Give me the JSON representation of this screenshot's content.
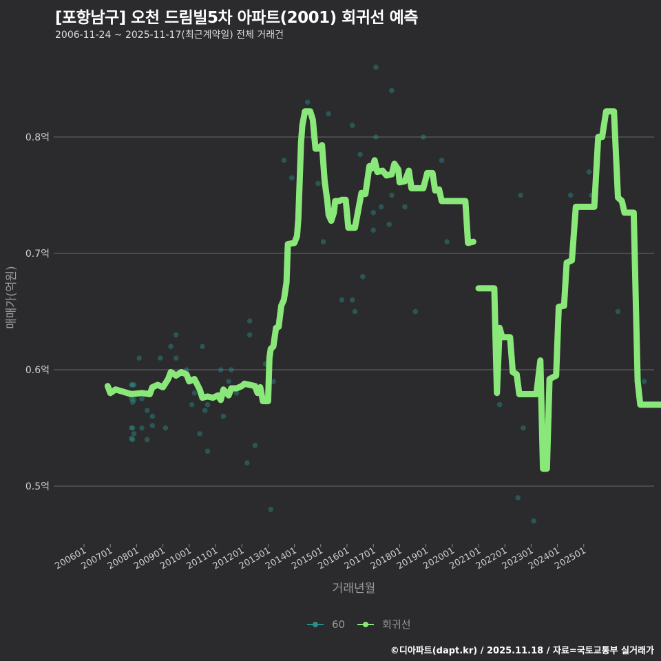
{
  "header": {
    "title": "[포항남구] 오천 드림빌5차 아파트(2001) 회귀선 예측",
    "subtitle": "2006-11-24 ~ 2025-11-17(최근계약일) 전체 거래건"
  },
  "legend": {
    "items": [
      {
        "label": "60",
        "color": "#2a8f8a"
      },
      {
        "label": "회귀선",
        "color": "#8ae87a"
      }
    ]
  },
  "footer": "©디아파트(dapt.kr) / 2025.11.18 / 자료=국토교통부 실거래가",
  "chart_data": {
    "type": "line",
    "title": "[포항남구] 오천 드림빌5차 아파트(2001) 회귀선 예측",
    "subtitle": "2006-11-24 ~ 2025-11-17(최근계약일) 전체 거래건",
    "xlabel": "거래년월",
    "ylabel": "매매가(억원)",
    "ylim": [
      0.45,
      0.87
    ],
    "grid": true,
    "legend_position": "bottom",
    "x_ticks": [
      "200601",
      "200701",
      "200801",
      "200901",
      "201001",
      "201101",
      "201201",
      "201301",
      "201401",
      "201501",
      "201601",
      "201701",
      "201801",
      "201901",
      "202001",
      "202101",
      "202201",
      "202301",
      "202401",
      "202501"
    ],
    "y_ticks": [
      {
        "value": 0.5,
        "label": "0.5억"
      },
      {
        "value": 0.6,
        "label": "0.6억"
      },
      {
        "value": 0.7,
        "label": "0.7억"
      },
      {
        "value": 0.8,
        "label": "0.8억"
      }
    ],
    "series": [
      {
        "name": "회귀선",
        "kind": "line",
        "color": "#8ae87a",
        "segments": [
          [
            [
              2006.9,
              0.586
            ],
            [
              2007.0,
              0.58
            ],
            [
              2007.2,
              0.583
            ],
            [
              2007.5,
              0.581
            ],
            [
              2007.8,
              0.579
            ],
            [
              2008.2,
              0.58
            ],
            [
              2008.5,
              0.579
            ],
            [
              2008.6,
              0.585
            ],
            [
              2008.8,
              0.587
            ],
            [
              2009.0,
              0.585
            ],
            [
              2009.2,
              0.592
            ],
            [
              2009.3,
              0.598
            ],
            [
              2009.5,
              0.595
            ],
            [
              2009.7,
              0.598
            ],
            [
              2009.9,
              0.596
            ],
            [
              2010.0,
              0.59
            ],
            [
              2010.2,
              0.592
            ],
            [
              2010.4,
              0.583
            ],
            [
              2010.5,
              0.576
            ],
            [
              2010.7,
              0.577
            ],
            [
              2010.9,
              0.576
            ],
            [
              2011.1,
              0.578
            ],
            [
              2011.2,
              0.574
            ],
            [
              2011.3,
              0.583
            ],
            [
              2011.5,
              0.578
            ],
            [
              2011.6,
              0.584
            ],
            [
              2011.8,
              0.584
            ],
            [
              2012.0,
              0.586
            ],
            [
              2012.1,
              0.588
            ],
            [
              2012.3,
              0.587
            ],
            [
              2012.5,
              0.586
            ],
            [
              2012.6,
              0.58
            ],
            [
              2012.7,
              0.585
            ],
            [
              2012.8,
              0.573
            ],
            [
              2013.0,
              0.573
            ],
            [
              2013.05,
              0.61
            ],
            [
              2013.1,
              0.618
            ],
            [
              2013.2,
              0.62
            ],
            [
              2013.3,
              0.636
            ],
            [
              2013.4,
              0.637
            ],
            [
              2013.5,
              0.655
            ],
            [
              2013.6,
              0.66
            ],
            [
              2013.7,
              0.675
            ],
            [
              2013.75,
              0.708
            ],
            [
              2014.0,
              0.709
            ],
            [
              2014.1,
              0.715
            ],
            [
              2014.15,
              0.73
            ],
            [
              2014.25,
              0.795
            ],
            [
              2014.3,
              0.81
            ],
            [
              2014.4,
              0.822
            ],
            [
              2014.6,
              0.822
            ],
            [
              2014.7,
              0.815
            ],
            [
              2014.8,
              0.79
            ],
            [
              2014.9,
              0.79
            ],
            [
              2015.05,
              0.793
            ],
            [
              2015.15,
              0.762
            ],
            [
              2015.25,
              0.745
            ],
            [
              2015.3,
              0.733
            ],
            [
              2015.4,
              0.728
            ],
            [
              2015.5,
              0.735
            ],
            [
              2015.55,
              0.745
            ],
            [
              2015.7,
              0.745
            ],
            [
              2015.8,
              0.746
            ],
            [
              2015.95,
              0.746
            ],
            [
              2016.05,
              0.722
            ],
            [
              2016.3,
              0.722
            ],
            [
              2016.45,
              0.74
            ],
            [
              2016.55,
              0.752
            ],
            [
              2016.7,
              0.751
            ],
            [
              2016.85,
              0.775
            ],
            [
              2016.95,
              0.773
            ],
            [
              2017.05,
              0.78
            ],
            [
              2017.15,
              0.77
            ],
            [
              2017.35,
              0.771
            ],
            [
              2017.5,
              0.767
            ],
            [
              2017.7,
              0.768
            ],
            [
              2017.8,
              0.777
            ],
            [
              2017.95,
              0.772
            ],
            [
              2018.0,
              0.761
            ],
            [
              2018.2,
              0.762
            ],
            [
              2018.35,
              0.771
            ],
            [
              2018.45,
              0.756
            ],
            [
              2018.9,
              0.756
            ],
            [
              2019.05,
              0.769
            ],
            [
              2019.25,
              0.769
            ],
            [
              2019.35,
              0.754
            ],
            [
              2019.5,
              0.755
            ],
            [
              2019.6,
              0.745
            ],
            [
              2020.5,
              0.745
            ],
            [
              2020.6,
              0.709
            ],
            [
              2020.8,
              0.71
            ]
          ],
          [
            [
              2021.0,
              0.67
            ],
            [
              2021.6,
              0.67
            ],
            [
              2021.7,
              0.58
            ],
            [
              2021.8,
              0.636
            ],
            [
              2021.9,
              0.628
            ],
            [
              2022.2,
              0.628
            ],
            [
              2022.3,
              0.598
            ],
            [
              2022.45,
              0.596
            ],
            [
              2022.55,
              0.579
            ],
            [
              2023.2,
              0.579
            ],
            [
              2023.35,
              0.608
            ],
            [
              2023.45,
              0.515
            ],
            [
              2023.6,
              0.515
            ],
            [
              2023.7,
              0.592
            ],
            [
              2023.95,
              0.595
            ],
            [
              2024.05,
              0.654
            ],
            [
              2024.25,
              0.655
            ],
            [
              2024.35,
              0.692
            ],
            [
              2024.55,
              0.694
            ],
            [
              2024.7,
              0.74
            ],
            [
              2025.4,
              0.74
            ],
            [
              2025.55,
              0.8
            ],
            [
              2025.7,
              0.8
            ],
            [
              2025.85,
              0.822
            ],
            [
              2026.15,
              0.822
            ],
            [
              2026.3,
              0.748
            ],
            [
              2026.45,
              0.745
            ],
            [
              2026.55,
              0.735
            ],
            [
              2026.9,
              0.735
            ],
            [
              2027.05,
              0.59
            ],
            [
              2027.15,
              0.57
            ],
            [
              2028.5,
              0.57
            ]
          ]
        ]
      },
      {
        "name": "60",
        "kind": "scatter",
        "color": "#2a8f8a",
        "points": [
          [
            2007.8,
            0.587
          ],
          [
            2007.85,
            0.587
          ],
          [
            2007.9,
            0.587
          ],
          [
            2007.8,
            0.575
          ],
          [
            2007.85,
            0.572
          ],
          [
            2007.9,
            0.574
          ],
          [
            2007.8,
            0.58
          ],
          [
            2007.8,
            0.55
          ],
          [
            2007.85,
            0.55
          ],
          [
            2007.8,
            0.541
          ],
          [
            2007.85,
            0.54
          ],
          [
            2007.9,
            0.545
          ],
          [
            2008.1,
            0.61
          ],
          [
            2008.2,
            0.575
          ],
          [
            2008.2,
            0.55
          ],
          [
            2008.4,
            0.54
          ],
          [
            2008.4,
            0.565
          ],
          [
            2008.6,
            0.56
          ],
          [
            2008.6,
            0.552
          ],
          [
            2008.9,
            0.61
          ],
          [
            2009.1,
            0.55
          ],
          [
            2009.3,
            0.62
          ],
          [
            2009.5,
            0.61
          ],
          [
            2009.5,
            0.63
          ],
          [
            2009.9,
            0.6
          ],
          [
            2010.1,
            0.57
          ],
          [
            2010.2,
            0.58
          ],
          [
            2010.4,
            0.545
          ],
          [
            2010.5,
            0.62
          ],
          [
            2010.6,
            0.565
          ],
          [
            2010.7,
            0.53
          ],
          [
            2010.7,
            0.57
          ],
          [
            2011.2,
            0.6
          ],
          [
            2011.3,
            0.56
          ],
          [
            2011.5,
            0.59
          ],
          [
            2011.6,
            0.6
          ],
          [
            2011.8,
            0.58
          ],
          [
            2012.2,
            0.52
          ],
          [
            2012.3,
            0.63
          ],
          [
            2012.3,
            0.642
          ],
          [
            2012.5,
            0.535
          ],
          [
            2012.9,
            0.605
          ],
          [
            2013.0,
            0.59
          ],
          [
            2013.2,
            0.59
          ],
          [
            2013.1,
            0.48
          ],
          [
            2013.6,
            0.78
          ],
          [
            2013.9,
            0.765
          ],
          [
            2014.5,
            0.83
          ],
          [
            2014.7,
            0.8
          ],
          [
            2014.9,
            0.76
          ],
          [
            2015.3,
            0.82
          ],
          [
            2015.1,
            0.71
          ],
          [
            2015.8,
            0.66
          ],
          [
            2016.2,
            0.66
          ],
          [
            2016.3,
            0.65
          ],
          [
            2016.2,
            0.81
          ],
          [
            2016.5,
            0.785
          ],
          [
            2016.6,
            0.68
          ],
          [
            2017.1,
            0.86
          ],
          [
            2017.3,
            0.74
          ],
          [
            2017.0,
            0.72
          ],
          [
            2017.0,
            0.735
          ],
          [
            2017.1,
            0.8
          ],
          [
            2017.6,
            0.725
          ],
          [
            2017.7,
            0.75
          ],
          [
            2017.7,
            0.84
          ],
          [
            2018.2,
            0.74
          ],
          [
            2018.6,
            0.65
          ],
          [
            2018.9,
            0.8
          ],
          [
            2019.6,
            0.78
          ],
          [
            2019.8,
            0.71
          ],
          [
            2021.8,
            0.57
          ],
          [
            2022.5,
            0.49
          ],
          [
            2022.6,
            0.75
          ],
          [
            2022.7,
            0.55
          ],
          [
            2023.1,
            0.47
          ],
          [
            2023.7,
            0.56
          ],
          [
            2024.5,
            0.75
          ],
          [
            2025.2,
            0.77
          ],
          [
            2025.3,
            0.75
          ],
          [
            2026.3,
            0.65
          ],
          [
            2027.3,
            0.59
          ],
          [
            2028.4,
            0.55
          ]
        ]
      }
    ]
  }
}
